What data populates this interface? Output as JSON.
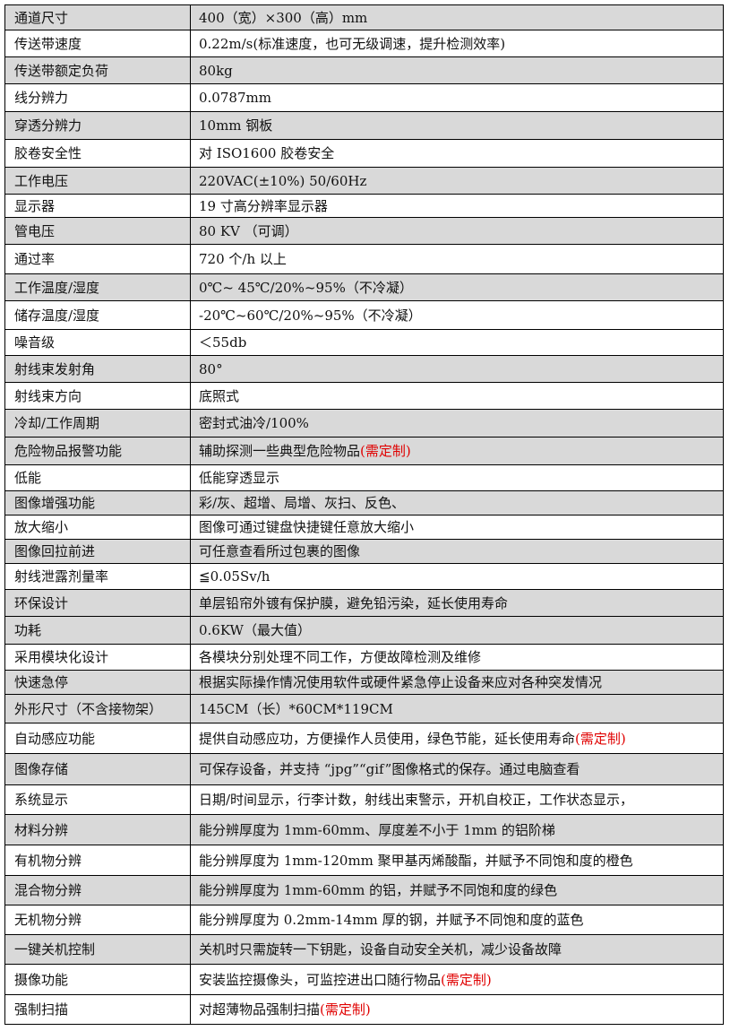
{
  "colors": {
    "shade": "#d9d9d9",
    "note": "#e00000",
    "border": "#000000"
  },
  "rows": [
    {
      "label": "通道尺寸",
      "value": "400（宽）×300（高）mm",
      "shaded": true
    },
    {
      "label": "传送带速度",
      "value": "0.22m/s(标准速度，也可无级调速，提升检测效率)",
      "shaded": false
    },
    {
      "label": "传送带额定负荷",
      "value": "80kg",
      "shaded": true
    },
    {
      "label": "线分辨力",
      "value": "0.0787mm",
      "shaded": false
    },
    {
      "label": "穿透分辨力",
      "value": "10mm 钢板",
      "shaded": true
    },
    {
      "label": "胶卷安全性",
      "value": "对 ISO1600 胶卷安全",
      "shaded": false
    },
    {
      "label": "工作电压",
      "value": "220VAC(±10%) 50/60Hz",
      "shaded": true
    },
    {
      "label": "显示器",
      "value": "19 寸高分辨率显示器",
      "shaded": false
    },
    {
      "label": "管电压",
      "value": "80 KV （可调）",
      "shaded": true
    },
    {
      "label": "通过率",
      "value": "720 个/h 以上",
      "shaded": false
    },
    {
      "label": "工作温度/湿度",
      "value": "0℃~ 45℃/20%~95%（不冷凝）",
      "shaded": true
    },
    {
      "label": "储存温度/湿度",
      "value": "-20℃~60℃/20%~95%（不冷凝）",
      "shaded": false
    },
    {
      "label": "噪音级",
      "value": "＜55db",
      "shaded": false
    },
    {
      "label": "射线束发射角",
      "value": "80°",
      "shaded": true
    },
    {
      "label": "射线束方向",
      "value": "底照式",
      "shaded": false
    },
    {
      "label": "冷却/工作周期",
      "value": "密封式油冷/100%",
      "shaded": true
    },
    {
      "label": "危险物品报警功能",
      "value": "辅助探测一些典型危险物品",
      "note": "(需定制)",
      "shaded": true
    },
    {
      "label": "低能",
      "value": "低能穿透显示",
      "shaded": false
    },
    {
      "label": "图像增强功能",
      "value": "彩/灰、超增、局增、灰扫、反色、",
      "shaded": true
    },
    {
      "label": "放大缩小",
      "value": "图像可通过键盘快捷键任意放大缩小",
      "shaded": false
    },
    {
      "label": "图像回拉前进",
      "value": "可任意查看所过包裹的图像",
      "shaded": true
    },
    {
      "label": "射线泄露剂量率",
      "value": "≦0.05Sv/h",
      "shaded": false
    },
    {
      "label": "环保设计",
      "value": "单层铅帘外镀有保护膜，避免铅污染，延长使用寿命",
      "shaded": true
    },
    {
      "label": "功耗",
      "value": "0.6KW（最大值）",
      "shaded": true
    },
    {
      "label": "采用模块化设计",
      "value": "各模块分别处理不同工作，方便故障检测及维修",
      "shaded": false
    },
    {
      "label": "快速急停",
      "value": "根据实际操作情况使用软件或硬件紧急停止设备来应对各种突发情况",
      "shaded": true
    },
    {
      "label": "外形尺寸（不含接物架）",
      "value": "145CM（长）*60CM*119CM",
      "shaded": true
    },
    {
      "label": "自动感应功能",
      "value": "提供自动感应功，方便操作人员使用，绿色节能，延长使用寿命",
      "note": "(需定制)",
      "shaded": false
    },
    {
      "label": "图像存储",
      "value": "可保存设备，并支持 “jpg”“gif”图像格式的保存。通过电脑查看",
      "shaded": true
    },
    {
      "label": "系统显示",
      "value": "日期/时间显示，行李计数，射线出束警示，开机自校正，工作状态显示，",
      "shaded": false
    },
    {
      "label": "材料分辨",
      "value": "能分辨厚度为 1mm-60mm、厚度差不小于 1mm 的铝阶梯",
      "shaded": true
    },
    {
      "label": "有机物分辨",
      "value": "能分辨厚度为 1mm-120mm 聚甲基丙烯酸酯，并赋予不同饱和度的橙色",
      "shaded": false
    },
    {
      "label": "混合物分辨",
      "value": "能分辨厚度为 1mm-60mm 的铝，并赋予不同饱和度的绿色",
      "shaded": true
    },
    {
      "label": "无机物分辨",
      "value": "能分辨厚度为 0.2mm-14mm 厚的钢，并赋予不同饱和度的蓝色",
      "shaded": false
    },
    {
      "label": "一键关机控制",
      "value": "关机时只需旋转一下钥匙，设备自动安全关机，减少设备故障",
      "shaded": true
    },
    {
      "label": "摄像功能",
      "value": "安装监控摄像头，可监控进出口随行物品",
      "note": "(需定制)",
      "shaded": false
    },
    {
      "label": "强制扫描",
      "value": "对超薄物品强制扫描",
      "note": "(需定制)",
      "shaded": false
    }
  ]
}
